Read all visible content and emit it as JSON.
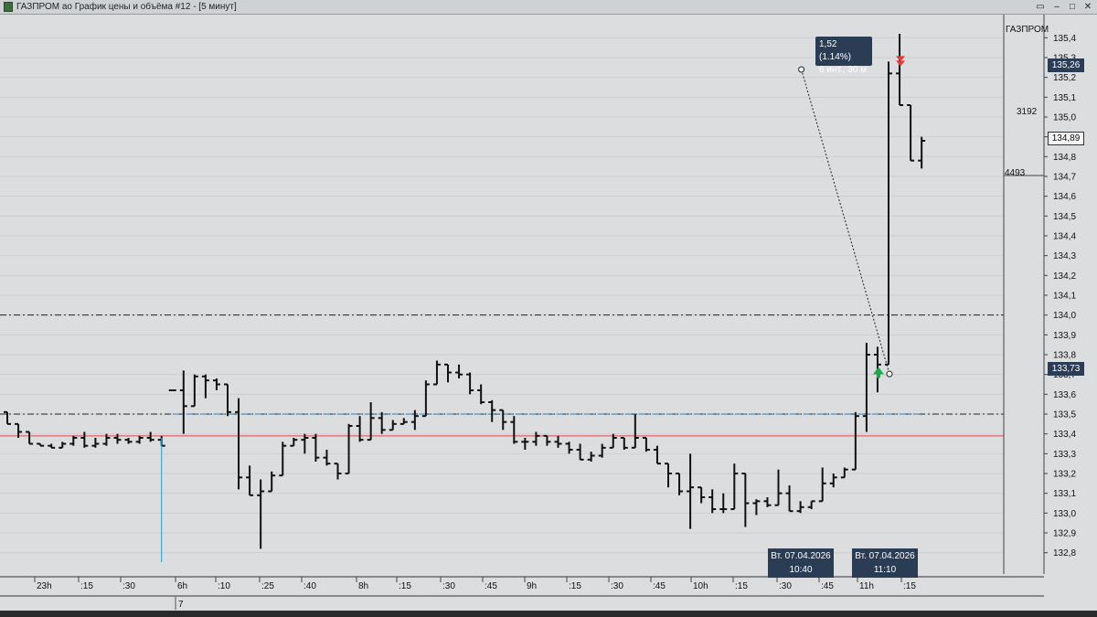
{
  "window": {
    "title": "ГАЗПРОМ ао График цены и объёма #12 - [5 минут]",
    "controls": [
      "▭",
      "–",
      "□",
      "✕"
    ]
  },
  "colors": {
    "chart_bg": "#dcdddf",
    "bars": "#111111",
    "support_line": "#e04a4a",
    "dashed_blue": "#2a7fb8",
    "badge_bg": "#2b3c55",
    "buy_arrow": "#1fa84a",
    "sell_arrow": "#e53935"
  },
  "chart_data": {
    "type": "ohlc",
    "ticker_label": "ГАЗПРОМ",
    "interval": "5 минут",
    "ylim": [
      132.72,
      135.48
    ],
    "y_ticks": [
      132.8,
      132.9,
      133.0,
      133.1,
      133.2,
      133.3,
      133.4,
      133.5,
      133.6,
      133.7,
      133.8,
      133.9,
      134.0,
      134.1,
      134.2,
      134.3,
      134.4,
      134.5,
      134.6,
      134.7,
      134.8,
      134.9,
      135.0,
      135.1,
      135.2,
      135.3,
      135.4
    ],
    "y_tick_labels": [
      "132,8",
      "132,9",
      "133,0",
      "133,1",
      "133,2",
      "133,3",
      "133,4",
      "133,5",
      "133,6",
      "133,7",
      "133,8",
      "133,9",
      "134,0",
      "134,1",
      "134,2",
      "134,3",
      "134,4",
      "134,5",
      "134,6",
      "134,7",
      "134,8",
      "134,9",
      "135,0",
      "135,1",
      "135,2",
      "135,3",
      "135,4"
    ],
    "x_ticks": [
      "23h",
      ":15",
      ":30",
      "6h",
      ":10",
      ":25",
      ":40",
      "8h",
      ":15",
      ":30",
      ":45",
      "9h",
      ":15",
      ":30",
      ":45",
      "10h",
      ":15",
      ":30",
      ":45",
      "11h",
      ":15"
    ],
    "date_row_label": "7",
    "bars": [
      [
        133.51,
        133.51,
        133.45,
        133.45
      ],
      [
        133.45,
        133.45,
        133.38,
        133.41
      ],
      [
        133.41,
        133.41,
        133.35,
        133.35
      ],
      [
        133.35,
        133.35,
        133.34,
        133.34
      ],
      [
        133.34,
        133.35,
        133.33,
        133.33
      ],
      [
        133.33,
        133.36,
        133.33,
        133.35
      ],
      [
        133.35,
        133.39,
        133.34,
        133.38
      ],
      [
        133.38,
        133.41,
        133.33,
        133.34
      ],
      [
        133.34,
        133.38,
        133.33,
        133.35
      ],
      [
        133.35,
        133.4,
        133.34,
        133.38
      ],
      [
        133.38,
        133.4,
        133.35,
        133.37
      ],
      [
        133.37,
        133.38,
        133.35,
        133.36
      ],
      [
        133.36,
        133.39,
        133.35,
        133.38
      ],
      [
        133.38,
        133.41,
        133.36,
        133.37
      ],
      [
        133.37,
        133.39,
        133.34,
        133.34
      ],
      [
        133.62,
        133.62,
        133.62,
        133.62
      ],
      [
        133.62,
        133.72,
        133.4,
        133.54
      ],
      [
        133.54,
        133.7,
        133.64,
        133.69
      ],
      [
        133.69,
        133.7,
        133.58,
        133.67
      ],
      [
        133.67,
        133.68,
        133.62,
        133.65
      ],
      [
        133.65,
        133.63,
        133.49,
        133.51
      ],
      [
        133.51,
        133.58,
        133.12,
        133.18
      ],
      [
        133.18,
        133.24,
        133.09,
        133.09
      ],
      [
        133.09,
        133.17,
        132.82,
        133.11
      ],
      [
        133.11,
        133.21,
        133.18,
        133.19
      ],
      [
        133.19,
        133.36,
        133.27,
        133.34
      ],
      [
        133.34,
        133.38,
        133.34,
        133.37
      ],
      [
        133.37,
        133.4,
        133.3,
        133.38
      ],
      [
        133.38,
        133.4,
        133.26,
        133.28
      ],
      [
        133.28,
        133.32,
        133.24,
        133.25
      ],
      [
        133.25,
        133.23,
        133.17,
        133.2
      ],
      [
        133.2,
        133.45,
        133.4,
        133.44
      ],
      [
        133.44,
        133.49,
        133.36,
        133.37
      ],
      [
        133.37,
        133.56,
        133.45,
        133.48
      ],
      [
        133.48,
        133.51,
        133.4,
        133.42
      ],
      [
        133.42,
        133.47,
        133.43,
        133.45
      ],
      [
        133.45,
        133.48,
        133.45,
        133.46
      ],
      [
        133.46,
        133.52,
        133.42,
        133.49
      ],
      [
        133.49,
        133.67,
        133.6,
        133.65
      ],
      [
        133.65,
        133.77,
        133.66,
        133.75
      ],
      [
        133.75,
        133.72,
        133.66,
        133.71
      ],
      [
        133.71,
        133.75,
        133.68,
        133.7
      ],
      [
        133.7,
        133.71,
        133.6,
        133.62
      ],
      [
        133.62,
        133.65,
        133.55,
        133.56
      ],
      [
        133.56,
        133.57,
        133.46,
        133.52
      ],
      [
        133.52,
        133.5,
        133.42,
        133.46
      ],
      [
        133.46,
        133.49,
        133.35,
        133.36
      ],
      [
        133.36,
        133.38,
        133.32,
        133.36
      ],
      [
        133.36,
        133.41,
        133.34,
        133.39
      ],
      [
        133.39,
        133.39,
        133.34,
        133.36
      ],
      [
        133.36,
        133.39,
        133.33,
        133.35
      ],
      [
        133.35,
        133.36,
        133.3,
        133.32
      ],
      [
        133.32,
        133.35,
        133.27,
        133.27
      ],
      [
        133.27,
        133.31,
        133.26,
        133.29
      ],
      [
        133.29,
        133.35,
        133.28,
        133.33
      ],
      [
        133.33,
        133.4,
        133.33,
        133.38
      ],
      [
        133.38,
        133.37,
        133.32,
        133.33
      ],
      [
        133.33,
        133.5,
        133.35,
        133.38
      ],
      [
        133.38,
        133.38,
        133.31,
        133.32
      ],
      [
        133.32,
        133.34,
        133.25,
        133.25
      ],
      [
        133.25,
        133.24,
        133.13,
        133.2
      ],
      [
        133.2,
        133.19,
        133.09,
        133.11
      ],
      [
        133.11,
        133.3,
        132.92,
        133.13
      ],
      [
        133.13,
        133.09,
        133.05,
        133.08
      ],
      [
        133.08,
        133.12,
        133.0,
        133.02
      ],
      [
        133.02,
        133.1,
        133.0,
        133.02
      ],
      [
        133.02,
        133.25,
        133.1,
        133.2
      ],
      [
        133.2,
        133.16,
        132.93,
        133.05
      ],
      [
        133.05,
        133.07,
        132.99,
        133.06
      ],
      [
        133.06,
        133.08,
        133.03,
        133.04
      ],
      [
        133.04,
        133.22,
        133.06,
        133.1
      ],
      [
        133.1,
        133.14,
        133.02,
        133.01
      ],
      [
        133.01,
        133.06,
        133.0,
        133.03
      ],
      [
        133.03,
        133.06,
        133.02,
        133.06
      ],
      [
        133.06,
        133.23,
        133.09,
        133.15
      ],
      [
        133.15,
        133.2,
        133.13,
        133.18
      ],
      [
        133.18,
        133.23,
        133.22,
        133.22
      ],
      [
        133.22,
        133.51,
        133.47,
        133.49
      ],
      [
        133.49,
        133.86,
        133.41,
        133.8
      ],
      [
        133.8,
        133.84,
        133.61,
        133.75
      ],
      [
        133.75,
        135.28,
        133.78,
        135.22
      ],
      [
        135.22,
        135.42,
        135.15,
        135.06
      ],
      [
        135.06,
        135.04,
        134.78,
        134.78
      ],
      [
        134.78,
        134.9,
        134.74,
        134.88
      ]
    ],
    "horizontal_levels": [
      {
        "price": 134.0,
        "style": "dash-dot",
        "color": "#222222"
      },
      {
        "price": 133.5,
        "style": "dash-dot",
        "color": "#222222"
      },
      {
        "price": 133.39,
        "style": "solid",
        "color": "#e04a4a"
      },
      {
        "price": 133.5,
        "style": "dash-dot",
        "color": "#2a7fb8",
        "from_bar": 15,
        "to_bar": 83
      }
    ],
    "vertical_marker_bar": 14,
    "measure_line": {
      "from_bar": 72,
      "from_price": 135.24,
      "to_bar": 80,
      "to_price": 133.73
    },
    "buy_arrow": {
      "bar": 79,
      "price": 133.71
    },
    "sell_arrow": {
      "bar": 81,
      "price": 135.28
    },
    "tooltip": {
      "line1": "1,52 (1.14%)",
      "line2": "6 инт., 30 м"
    },
    "time_boxes": [
      {
        "date": "Вт. 07.04.2026",
        "time": "10:40"
      },
      {
        "date": "Вт. 07.04.2026",
        "time": "11:10"
      }
    ],
    "price_badges": [
      {
        "value": "135,26",
        "price": 135.26,
        "style": "dark"
      },
      {
        "value": "134,89",
        "price": 134.89,
        "style": "light"
      },
      {
        "value": "133,73",
        "price": 133.73,
        "style": "dark"
      }
    ],
    "volume_labels": [
      {
        "value": "3192",
        "price": 135.03
      },
      {
        "value": "4493",
        "price": 134.72
      }
    ]
  }
}
